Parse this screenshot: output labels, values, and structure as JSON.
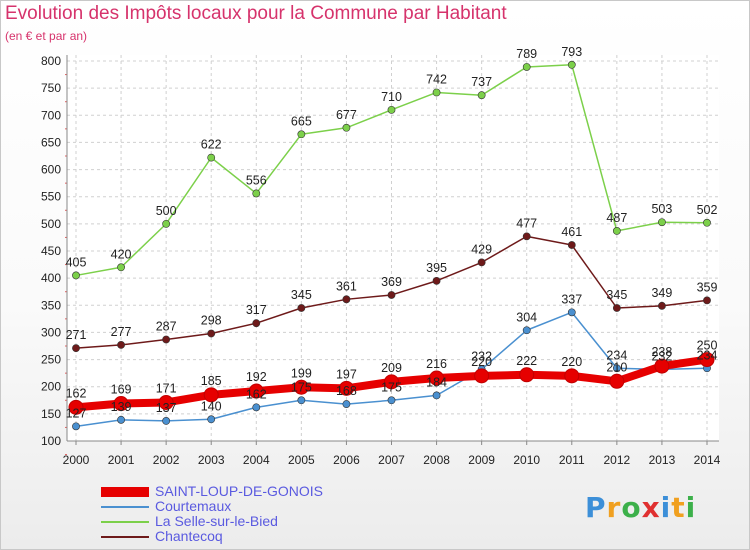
{
  "header": {
    "title": "Evolution des Impôts locaux pour la Commune par Habitant",
    "subtitle": "(en € et par an)"
  },
  "colors": {
    "title": "#d6336c",
    "legend_text": "#5a5ae0"
  },
  "chart_data": {
    "type": "line",
    "x": [
      "2000",
      "2001",
      "2002",
      "2003",
      "2004",
      "2005",
      "2006",
      "2007",
      "2008",
      "2009",
      "2010",
      "2011",
      "2012",
      "2013",
      "2014"
    ],
    "ylim": [
      100,
      800
    ],
    "yticks": [
      100,
      150,
      200,
      250,
      300,
      350,
      400,
      450,
      500,
      550,
      600,
      650,
      700,
      750,
      800
    ],
    "grid": true,
    "legend": "bottom-left",
    "series": [
      {
        "name": "SAINT-LOUP-DE-GONOIS",
        "color": "#e60000",
        "values": [
          162,
          169,
          171,
          185,
          192,
          199,
          197,
          209,
          216,
          220,
          222,
          220,
          210,
          238,
          250
        ]
      },
      {
        "name": "Courtemaux",
        "color": "#4a90d0",
        "values": [
          127,
          139,
          137,
          140,
          162,
          175,
          168,
          175,
          184,
          232,
          304,
          337,
          234,
          232,
          234
        ]
      },
      {
        "name": "La Selle-sur-le-Bied",
        "color": "#7cd04a",
        "values": [
          405,
          420,
          500,
          622,
          556,
          665,
          677,
          710,
          742,
          737,
          789,
          793,
          487,
          503,
          502
        ]
      },
      {
        "name": "Chantecoq",
        "color": "#6e1a1a",
        "values": [
          271,
          277,
          287,
          298,
          317,
          345,
          361,
          369,
          395,
          429,
          477,
          461,
          345,
          349,
          359
        ]
      }
    ]
  },
  "logo": {
    "letters": [
      "P",
      "r",
      "o",
      "x",
      "i",
      "t",
      "i"
    ],
    "colors": [
      "#3c8fd8",
      "#f0a020",
      "#3cb04a",
      "#e03030",
      "#3c8fd8",
      "#f0a020",
      "#3cb04a"
    ]
  }
}
